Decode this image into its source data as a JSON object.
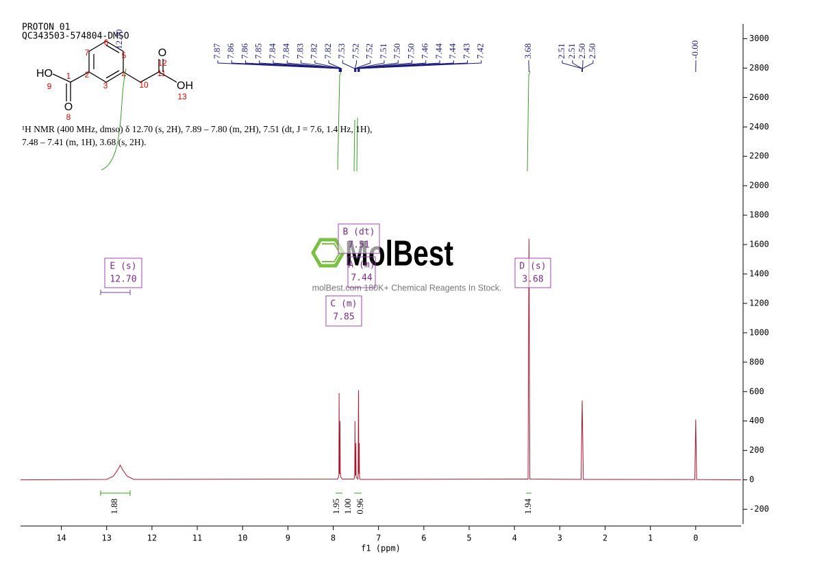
{
  "header": {
    "lines": [
      "PROTON 01",
      "QC343503-574804-DMSO"
    ]
  },
  "structure": {
    "labels": [
      "HO",
      "9",
      "1",
      "O",
      "8",
      "2",
      "3",
      "4",
      "5",
      "6",
      "7",
      "10",
      "11",
      "O",
      "12",
      "OH",
      "13"
    ]
  },
  "description": [
    "¹H NMR (400 MHz, dmso) δ 12.70 (s, 2H), 7.89 – 7.80 (m, 2H), 7.51 (dt, J = 7.6, 1.4 Hz, 1H),",
    "7.48 – 7.41 (m, 1H), 3.68 (s, 2H)."
  ],
  "watermark": {
    "brand": "MolBest",
    "tagline": "molBest.com 180K+ Chemical Reagents In Stock."
  },
  "chart_data": {
    "type": "line",
    "x_label": "f1 (ppm)",
    "xlim": [
      14.9,
      -1.0
    ],
    "xticks": [
      14,
      13,
      12,
      11,
      10,
      9,
      8,
      7,
      6,
      5,
      4,
      3,
      2,
      1,
      0
    ],
    "ylim": [
      -300,
      3100
    ],
    "yticks": [
      -200,
      0,
      200,
      400,
      600,
      800,
      1000,
      1200,
      1400,
      1600,
      1800,
      2000,
      2200,
      2400,
      2600,
      2800,
      3000
    ],
    "series": [
      {
        "color": "#a8162c",
        "x": [
          14.9,
          13.0,
          12.85,
          12.75,
          12.7,
          12.65,
          12.55,
          12.4,
          7.9,
          7.875,
          7.87,
          7.865,
          7.855,
          7.85,
          7.845,
          7.835,
          7.8,
          7.54,
          7.525,
          7.52,
          7.515,
          7.505,
          7.5,
          7.495,
          7.46,
          7.45,
          7.445,
          7.44,
          7.435,
          7.43,
          7.425,
          7.42,
          7.415,
          7.38,
          3.7,
          3.68,
          3.66,
          2.53,
          2.505,
          2.48,
          0.02,
          0,
          -0.02,
          -1.0
        ],
        "values": [
          0,
          3,
          25,
          70,
          100,
          70,
          25,
          3,
          5,
          30,
          590,
          60,
          40,
          400,
          60,
          20,
          5,
          5,
          30,
          400,
          40,
          30,
          250,
          20,
          5,
          30,
          440,
          610,
          60,
          40,
          250,
          30,
          5,
          3,
          5,
          1640,
          5,
          3,
          540,
          3,
          2,
          410,
          2,
          0
        ]
      }
    ],
    "peak_labels": [
      "12.70",
      "7.87",
      "7.86",
      "7.86",
      "7.85",
      "7.84",
      "7.84",
      "7.83",
      "7.82",
      "7.82",
      "7.53",
      "7.52",
      "7.52",
      "7.51",
      "7.50",
      "7.50",
      "7.46",
      "7.44",
      "7.44",
      "7.43",
      "7.42",
      "3.68",
      "2.51",
      "2.51",
      "2.50",
      "2.50",
      "-0.00"
    ],
    "multiplets": [
      {
        "label": "E (s)",
        "value": "12.70"
      },
      {
        "label": "B (dt)",
        "value": "7.51"
      },
      {
        "label": "A (m)",
        "value": "7.44"
      },
      {
        "label": "C (m)",
        "value": "7.85"
      },
      {
        "label": "D (s)",
        "value": "3.68"
      }
    ],
    "integrals": [
      "1.88",
      "1.95",
      "1.00",
      "0.96",
      "1.94"
    ]
  }
}
